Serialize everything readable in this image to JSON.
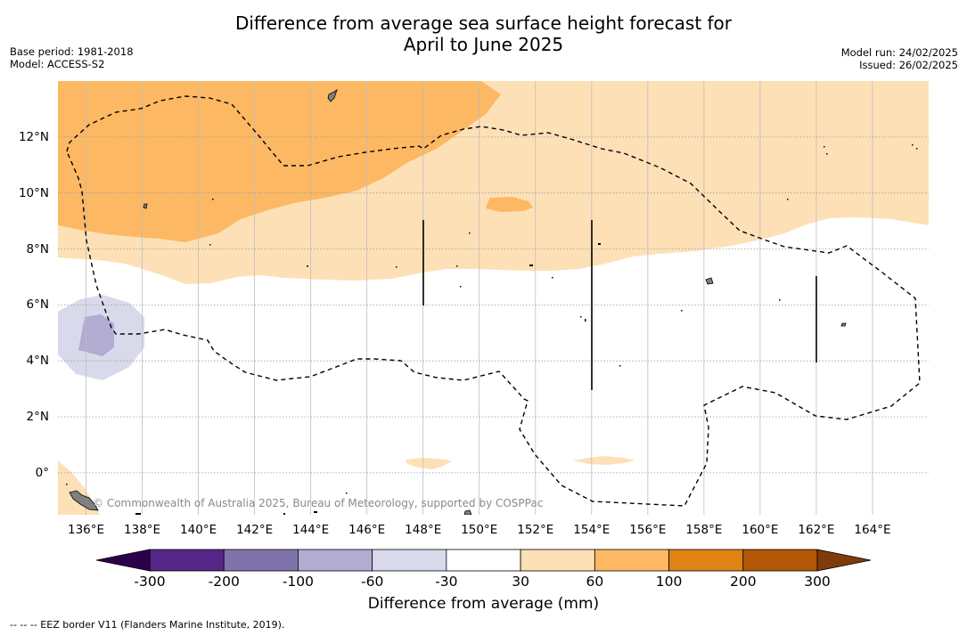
{
  "title": {
    "line1": "Difference from average sea surface height forecast for",
    "line2": "April to June 2025"
  },
  "meta_left": {
    "base_period": "Base period: 1981-2018",
    "model": "Model: ACCESS-S2"
  },
  "meta_right": {
    "model_run": "Model run: 24/02/2025",
    "issued": "Issued: 26/02/2025"
  },
  "map": {
    "lon_range": [
      135,
      166
    ],
    "lat_range": [
      -1.5,
      14
    ],
    "x_ticks": [
      "136°E",
      "138°E",
      "140°E",
      "142°E",
      "144°E",
      "146°E",
      "148°E",
      "150°E",
      "152°E",
      "154°E",
      "156°E",
      "158°E",
      "160°E",
      "162°E",
      "164°E"
    ],
    "y_ticks": [
      "0°",
      "2°N",
      "4°N",
      "6°N",
      "8°N",
      "10°N",
      "12°N"
    ],
    "copyright": "© Commonwealth of Australia 2025, Bureau of Meteorology, supported by COSPPac"
  },
  "colorbar": {
    "title": "Difference from average (mm)",
    "labels": [
      "-300",
      "-200",
      "-100",
      "-60",
      "-30",
      "30",
      "60",
      "100",
      "200",
      "300"
    ],
    "colors": {
      "under": "#2d004b",
      "bins": [
        "#542788",
        "#8073ac",
        "#b2abd2",
        "#d8daeb",
        "#ffffff",
        "#fee0b6",
        "#fdb863",
        "#e08214",
        "#b35806"
      ],
      "over": "#7f3b08"
    }
  },
  "footnote": "-- -- -- EEZ border V11 (Flanders Marine Institute, 2019)."
}
